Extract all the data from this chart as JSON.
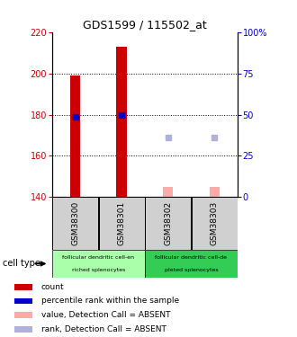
{
  "title": "GDS1599 / 115502_at",
  "samples": [
    "GSM38300",
    "GSM38301",
    "GSM38302",
    "GSM38303"
  ],
  "ylim": [
    140,
    220
  ],
  "yticks_left": [
    140,
    160,
    180,
    200,
    220
  ],
  "yticks_right": [
    0,
    25,
    50,
    75,
    100
  ],
  "yticks_right_labels": [
    "0",
    "25",
    "50",
    "75",
    "100%"
  ],
  "bar_values": [
    199,
    213,
    145,
    145
  ],
  "bar_colors": [
    "#cc0000",
    "#cc0000",
    "#ffaaaa",
    "#ffaaaa"
  ],
  "percentile_values": [
    179,
    180,
    null,
    null
  ],
  "rank_absent_values": [
    null,
    null,
    169,
    169
  ],
  "rank_absent_color": "#b0b0dd",
  "dotted_yticks": [
    160,
    180,
    200
  ],
  "group1_color": "#aaffaa",
  "group2_color": "#33cc55",
  "legend_colors": [
    "#cc0000",
    "#0000cc",
    "#ffaaaa",
    "#b0b0dd"
  ],
  "legend_labels": [
    "count",
    "percentile rank within the sample",
    "value, Detection Call = ABSENT",
    "rank, Detection Call = ABSENT"
  ],
  "left_tick_color": "#cc0000",
  "right_tick_color": "#0000cc",
  "cell_type_label": "cell type"
}
